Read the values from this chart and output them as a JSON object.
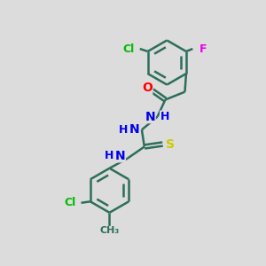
{
  "bg_color": "#dcdcdc",
  "bond_color": "#2d6e5a",
  "bond_width": 1.8,
  "atom_colors": {
    "Cl": "#00bb00",
    "F": "#ee00ee",
    "O": "#ff0000",
    "N": "#0000ee",
    "S": "#cccc00",
    "H": "#0000ee",
    "C": "#2d6e5a",
    "CH3": "#2d6e5a"
  },
  "font_size": 9,
  "fig_size": [
    3.0,
    3.0
  ],
  "dpi": 100
}
